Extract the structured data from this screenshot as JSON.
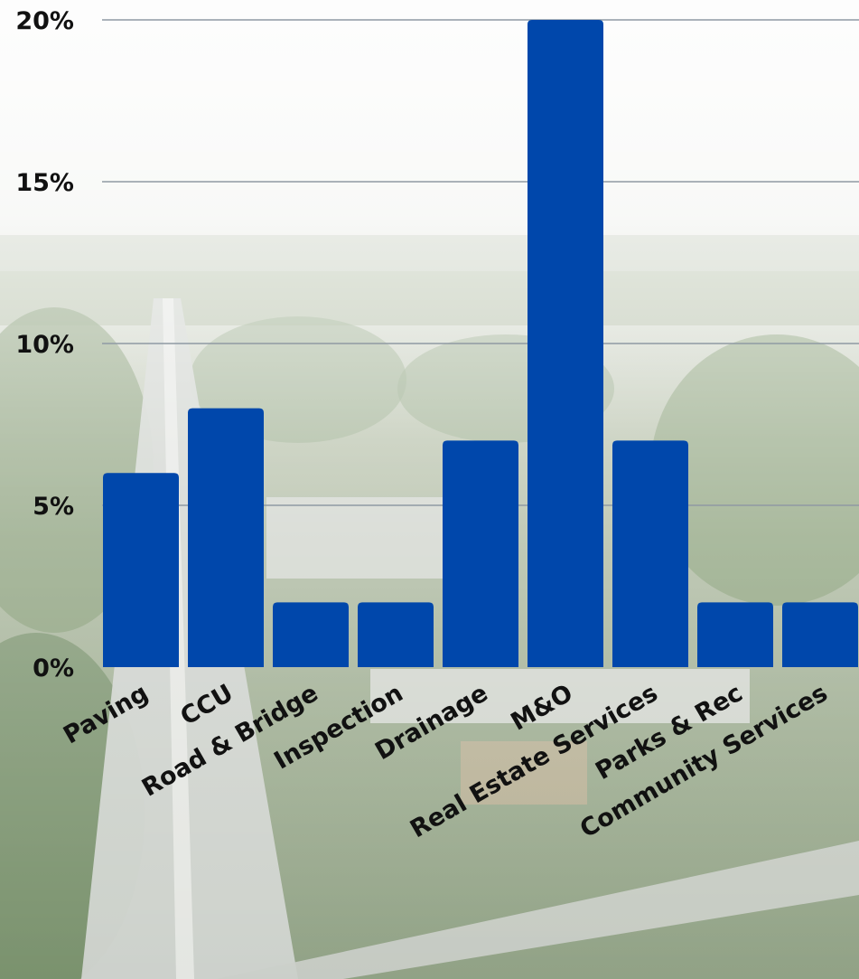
{
  "chart_data": {
    "type": "bar",
    "categories": [
      "Paving",
      "CCU",
      "Road & Bridge",
      "Inspection",
      "Drainage",
      "M&O",
      "Real Estate Services",
      "Parks & Rec",
      "Community Services"
    ],
    "values": [
      6,
      8,
      2,
      2,
      7,
      20,
      7,
      2,
      2
    ],
    "ylim": [
      0,
      20
    ],
    "yticks": [
      0,
      5,
      10,
      15,
      20
    ],
    "ytick_labels": [
      "0%",
      "5%",
      "10%",
      "15%",
      "20%"
    ],
    "unit": "%",
    "grid": true,
    "legend": "none",
    "title": "",
    "xlabel": "",
    "ylabel": ""
  },
  "colors": {
    "bar": "#0047AB",
    "gridline": "#8f9aa3",
    "text": "#111111",
    "sky_top": "#f3f4f2",
    "sky_bottom": "#dfe2db",
    "land_green": "#8ea27a",
    "land_dark": "#5f7a52",
    "road": "#c9ccc8"
  },
  "background": {
    "description_icon": "aerial-city-photo"
  }
}
